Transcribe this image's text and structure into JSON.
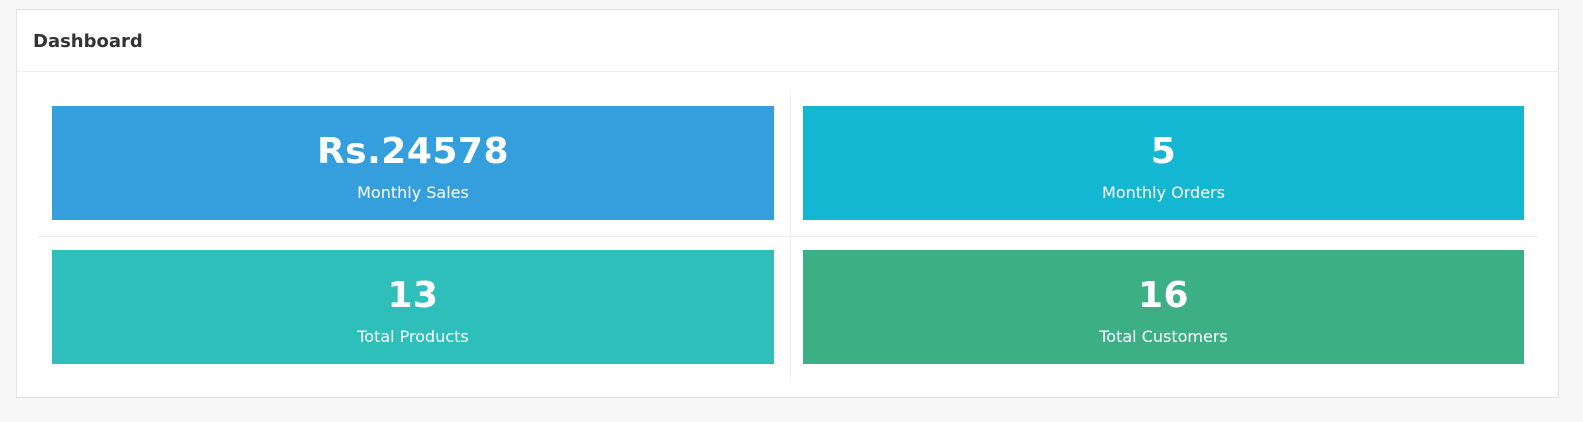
{
  "header": {
    "title": "Dashboard"
  },
  "stats": [
    {
      "value": "Rs.24578",
      "label": "Monthly Sales",
      "color": "#349fdc"
    },
    {
      "value": "5",
      "label": "Monthly Orders",
      "color": "#14b7d1"
    },
    {
      "value": "13",
      "label": "Total Products",
      "color": "#2fbfbb"
    },
    {
      "value": "16",
      "label": "Total Customers",
      "color": "#3daf84"
    }
  ]
}
